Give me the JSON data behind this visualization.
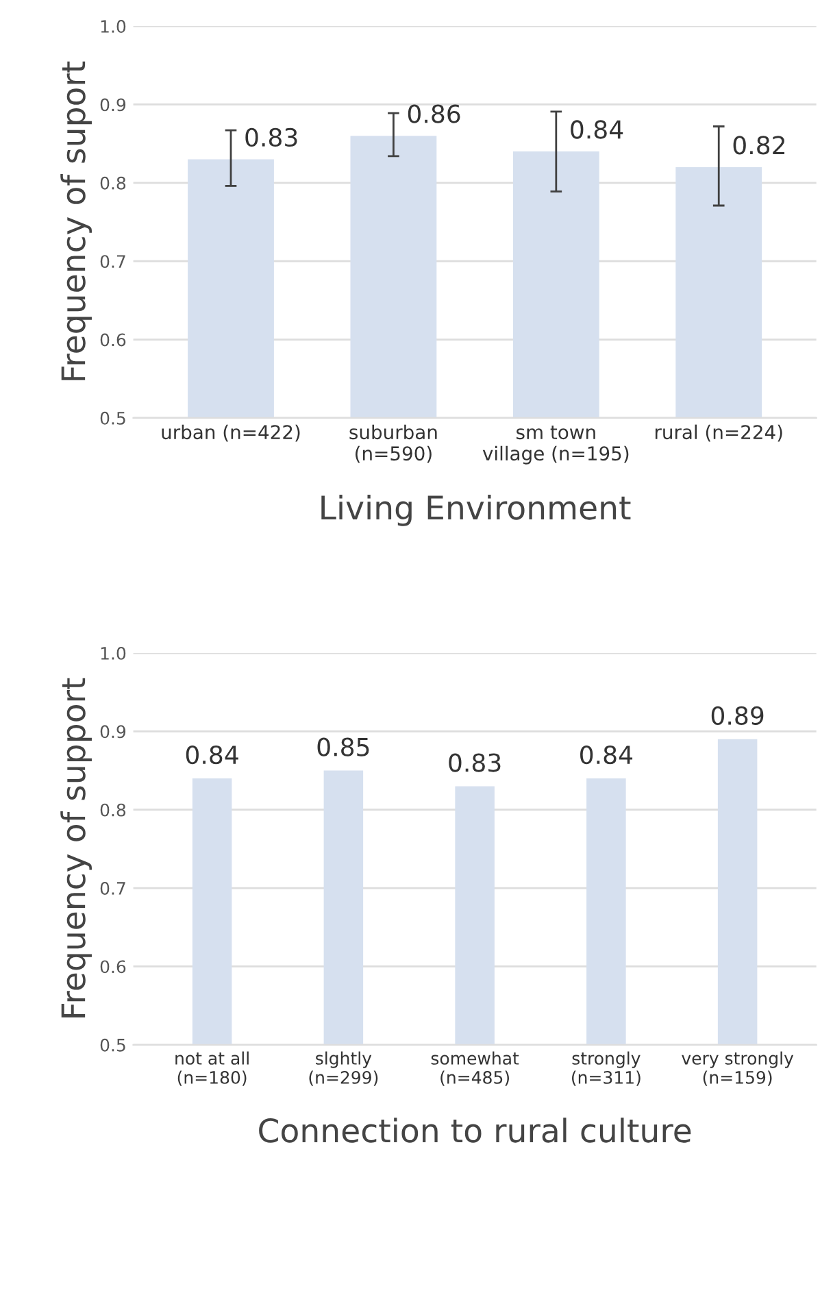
{
  "chart_data": [
    {
      "type": "bar",
      "xlabel": "Living Environment",
      "ylabel": "Frequency of suport",
      "categories": [
        "urban (n=422)",
        "suburban\n(n=590)",
        "sm town\nvillage (n=195)",
        "rural (n=224)"
      ],
      "values": [
        0.83,
        0.86,
        0.84,
        0.82
      ],
      "color": "#d6e0ef",
      "errors": [
        [
          0.796,
          0.867
        ],
        [
          0.834,
          0.889
        ],
        [
          0.789,
          0.891
        ],
        [
          0.771,
          0.872
        ]
      ],
      "ylim": [
        0.5,
        1.0
      ],
      "yticks": [
        {
          "value": 0.5,
          "label": "0.5"
        },
        {
          "value": 0.6,
          "label": "0.6"
        },
        {
          "value": 0.7,
          "label": "0.7"
        },
        {
          "value": 0.8,
          "label": "0.8"
        },
        {
          "value": 0.9,
          "label": "0.9"
        },
        {
          "value": 1.0,
          "label": "1.0"
        }
      ],
      "grid": "y",
      "data_labels": true
    },
    {
      "type": "bar",
      "xlabel": "Connection to rural culture",
      "ylabel": "Frequency of support",
      "categories": [
        "not at all\n(n=180)",
        "slghtly\n(n=299)",
        "somewhat\n(n=485)",
        "strongly\n(n=311)",
        "very strongly\n(n=159)"
      ],
      "values": [
        0.84,
        0.85,
        0.83,
        0.84,
        0.89
      ],
      "color": "#d6e0ef",
      "ylim": [
        0.5,
        1.0
      ],
      "yticks": [
        {
          "value": 0.5,
          "label": "0.5"
        },
        {
          "value": 0.6,
          "label": "0.6"
        },
        {
          "value": 0.7,
          "label": "0.7"
        },
        {
          "value": 0.8,
          "label": "0.8"
        },
        {
          "value": 0.9,
          "label": "0.9"
        },
        {
          "value": 1.0,
          "label": "1.0"
        }
      ],
      "grid": "y",
      "data_labels": true
    }
  ]
}
